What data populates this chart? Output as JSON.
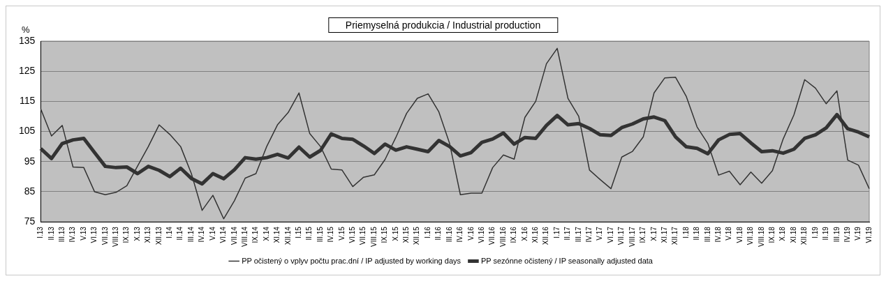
{
  "chart_data": {
    "type": "line",
    "title": "Priemyselná produkcia / Industrial production",
    "ylabel": "%",
    "categories": [
      "I.13",
      "II.13",
      "III.13",
      "IV.13",
      "V.13",
      "VI.13",
      "VII.13",
      "VIII.13",
      "IX.13",
      "X.13",
      "XI.13",
      "XII.13",
      "I.14",
      "II.14",
      "III.14",
      "IV.14",
      "V.14",
      "VI.14",
      "VII.14",
      "VIII.14",
      "IX.14",
      "X.14",
      "XI.14",
      "XII.14",
      "I.15",
      "II.15",
      "III.15",
      "IV.15",
      "V.15",
      "VI.15",
      "VII.15",
      "VIII.15",
      "IX.15",
      "X.15",
      "XI.15",
      "XII.15",
      "I.16",
      "II.16",
      "III.16",
      "IV.16",
      "V.16",
      "VI.16",
      "VII.16",
      "VIII.16",
      "IX.16",
      "X.16",
      "XI.16",
      "XII.16",
      "I.17",
      "II.17",
      "III.17",
      "IV.17",
      "V.17",
      "VI.17",
      "VII.17",
      "VIII.17",
      "IX.17",
      "X.17",
      "XI.17",
      "XII.17",
      "I.18",
      "II.18",
      "III.18",
      "IV.18",
      "V.18",
      "VI.18",
      "VII.18",
      "VIII.18",
      "IX.18",
      "X.18",
      "XI.18",
      "XII.18",
      "I.19",
      "II.19",
      "III.19",
      "IV.19",
      "V.19",
      "VI.19"
    ],
    "series": [
      {
        "name": "PP očistený o vplyv počtu prac.dní / IP adjusted by working days",
        "color": "#333333",
        "values": [
          112.5,
          103.5,
          107,
          93.2,
          93,
          85,
          84,
          84.8,
          87,
          93.5,
          100,
          107.2,
          104,
          100,
          91,
          78.8,
          83.8,
          76,
          82,
          89.5,
          91,
          100,
          107.2,
          111.3,
          117.8,
          104.3,
          100,
          92.5,
          92.2,
          86.7,
          89.8,
          90.6,
          95.7,
          103,
          111,
          116,
          117.5,
          111.5,
          101,
          84,
          84.5,
          84.5,
          93,
          97.2,
          95.8,
          109.7,
          115,
          127.5,
          132.6,
          116,
          110,
          92.2,
          89,
          86,
          96.5,
          98.4,
          103.2,
          117.8,
          122.8,
          123,
          116.6,
          106.5,
          101,
          90.5,
          91.8,
          87.3,
          91.5,
          87.8,
          92,
          102.5,
          110.5,
          122.2,
          119.4,
          114.2,
          118.5,
          95.5,
          93.8,
          86
        ]
      },
      {
        "name": "PP sezónne očistený / IP seasonally adjusted data",
        "color": "#333333",
        "values": [
          99.3,
          96,
          101,
          102.2,
          102.7,
          98,
          93.4,
          93,
          93.2,
          91,
          93.4,
          92.1,
          90,
          92.8,
          89.4,
          87.6,
          91,
          89.3,
          92.3,
          96.3,
          95.8,
          96.3,
          97.4,
          96.2,
          99.8,
          96.5,
          98.7,
          104.2,
          102.7,
          102.4,
          100.2,
          97.7,
          100.8,
          98.8,
          99.9,
          99.1,
          98.3,
          102,
          100,
          96.9,
          98,
          101.4,
          102.5,
          104.5,
          100.8,
          103,
          102.7,
          107,
          110.3,
          107.2,
          107.6,
          106,
          103.9,
          103.7,
          106.3,
          107.5,
          109.2,
          109.8,
          108.6,
          103.2,
          99.9,
          99.4,
          97.6,
          102.2,
          104,
          104.3,
          101.2,
          98.3,
          98.6,
          97.8,
          99.1,
          102.7,
          103.9,
          106.2,
          110.6,
          105.9,
          104.8,
          103.2
        ]
      }
    ],
    "ylim": [
      75,
      135
    ],
    "yticks": [
      75,
      85,
      95,
      105,
      115,
      125,
      135
    ],
    "grid": "y",
    "legend": "bottom",
    "marker": "none",
    "line_style": "solid"
  }
}
